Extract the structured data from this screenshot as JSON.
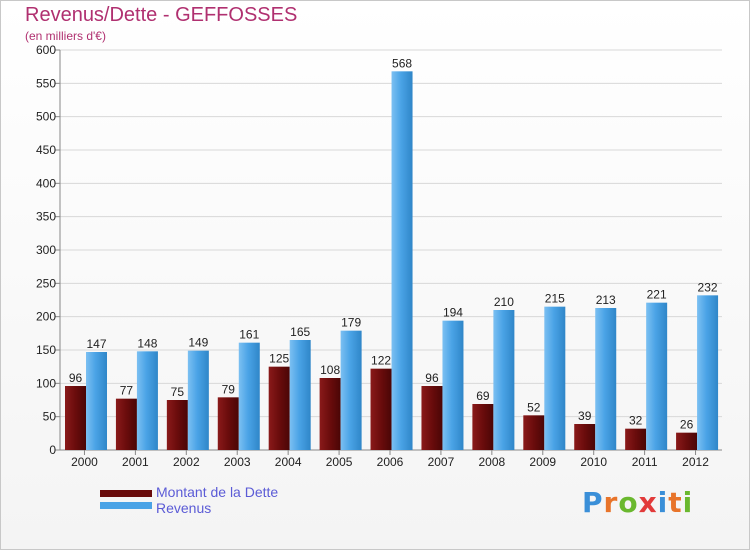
{
  "title": "Revenus/Dette - GEFFOSSES",
  "subtitle": "(en milliers d'€)",
  "legend": {
    "debt_label": "Montant de la Dette",
    "revenue_label": "Revenus"
  },
  "logo": {
    "text": "Proxiti",
    "letters": [
      "P",
      "r",
      "o",
      "x",
      "i",
      "t",
      "i"
    ],
    "colors": [
      "#3a8fd8",
      "#e8742a",
      "#6ab82e",
      "#e23a3a",
      "#3a8fd8",
      "#e8742a",
      "#6ab82e"
    ]
  },
  "colors": {
    "debt": "#6a0c0c",
    "revenue": "#4aa3e6",
    "title": "#b03070",
    "grid": "#d8d8d8"
  },
  "chart_data": {
    "type": "bar",
    "title": "Revenus/Dette - GEFFOSSES",
    "subtitle": "(en milliers d'€)",
    "categories": [
      "2000",
      "2001",
      "2002",
      "2003",
      "2004",
      "2005",
      "2006",
      "2007",
      "2008",
      "2009",
      "2010",
      "2011",
      "2012"
    ],
    "series": [
      {
        "name": "Montant de la Dette",
        "values": [
          96,
          77,
          75,
          79,
          125,
          108,
          122,
          96,
          69,
          52,
          39,
          32,
          26
        ]
      },
      {
        "name": "Revenus",
        "values": [
          147,
          148,
          149,
          161,
          165,
          179,
          568,
          194,
          210,
          215,
          213,
          221,
          232
        ]
      }
    ],
    "ylim": [
      0,
      600
    ],
    "yticks": [
      0,
      50,
      100,
      150,
      200,
      250,
      300,
      350,
      400,
      450,
      500,
      550,
      600
    ],
    "grid": true,
    "legend_position": "bottom-left"
  }
}
